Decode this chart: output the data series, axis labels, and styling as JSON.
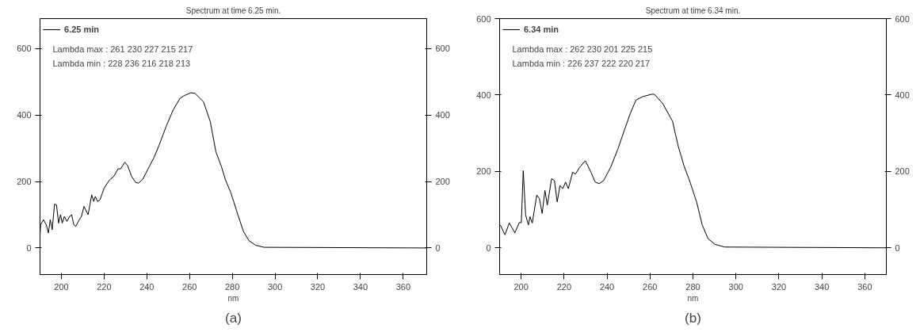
{
  "chart_data": [
    {
      "type": "line",
      "title": "Spectrum at time 6.25 min.",
      "xlabel": "nm",
      "legend": "top left",
      "xlim": [
        190,
        371
      ],
      "ylim": [
        -80,
        690
      ],
      "xticks": [
        200,
        220,
        240,
        260,
        280,
        300,
        320,
        340,
        360
      ],
      "yticks": [
        0,
        200,
        400,
        600
      ],
      "y2lim": [
        -80,
        690
      ],
      "y2ticks": [
        0,
        200,
        400,
        600
      ],
      "annotations": [
        "Lambda max :   261   230   227   215   217",
        "Lambda min  :   228   236   216   218   213",
        "(a)"
      ],
      "series": [
        {
          "name": "6.25 min",
          "color": "#000000",
          "x": [
            190,
            190.3,
            191.6,
            192.9,
            193.9,
            194.8,
            195.7,
            196.8,
            197.7,
            198.7,
            199.6,
            200.4,
            201.4,
            202.6,
            203.9,
            204.8,
            205.8,
            206.7,
            208.4,
            209.4,
            210.6,
            212.5,
            214.2,
            215.1,
            215.9,
            216.9,
            218.1,
            220,
            222.6,
            224.5,
            226.5,
            227.7,
            229.7,
            231,
            232.9,
            234.8,
            236.1,
            238.1,
            240.6,
            243.2,
            245.8,
            249,
            252.3,
            255.5,
            257.4,
            260.6,
            262.6,
            266.5,
            269.7,
            272.3,
            274.9,
            276.8,
            279.4,
            282.6,
            285.2,
            287.8,
            291,
            294.9,
            371
          ],
          "values": [
            40,
            70,
            85,
            70,
            45,
            85,
            55,
            132,
            130,
            75,
            100,
            75,
            95,
            80,
            95,
            100,
            70,
            65,
            85,
            95,
            125,
            100,
            160,
            140,
            155,
            140,
            145,
            180,
            205,
            215,
            238,
            238,
            258,
            248,
            215,
            197,
            195,
            207,
            238,
            270,
            310,
            365,
            415,
            450,
            458,
            467,
            465,
            440,
            380,
            290,
            245,
            205,
            165,
            100,
            50,
            22,
            8,
            2,
            0
          ]
        }
      ]
    },
    {
      "type": "line",
      "title": "Spectrum at time 6.34 min.",
      "xlabel": "nm",
      "legend": "top left",
      "xlim": [
        190,
        370
      ],
      "ylim": [
        -70,
        600
      ],
      "xticks": [
        200,
        220,
        240,
        260,
        280,
        300,
        320,
        340,
        360
      ],
      "yticks": [
        0,
        200,
        400,
        600
      ],
      "y2lim": [
        -70,
        600
      ],
      "y2ticks": [
        0,
        200,
        400,
        600
      ],
      "annotations": [
        "Lambda max :   262   230   201   225   215",
        "Lambda min  :   226   237   222   220   217",
        "(b)"
      ],
      "series": [
        {
          "name": "6.34 min",
          "color": "#000000",
          "x": [
            190.3,
            192.5,
            194.5,
            197.1,
            199.1,
            200.1,
            201,
            202.1,
            203.4,
            204.1,
            205.2,
            207.3,
            208.5,
            209.8,
            211.1,
            212.2,
            214.2,
            215.5,
            216.8,
            218.1,
            219.4,
            220.7,
            222,
            224,
            225.3,
            227.3,
            229.9,
            232.5,
            234.5,
            236.4,
            238.4,
            241.7,
            245,
            248.2,
            250.9,
            253.5,
            256.7,
            260.7,
            262,
            265.9,
            270.5,
            273.1,
            275.8,
            278.4,
            281.7,
            284.3,
            287,
            290.3,
            294.8,
            370
          ],
          "values": [
            60,
            34,
            65,
            39,
            66,
            66,
            202,
            86,
            60,
            82,
            65,
            138,
            129,
            90,
            150,
            112,
            181,
            176,
            120,
            163,
            155,
            172,
            155,
            198,
            193,
            211,
            228,
            198,
            172,
            168,
            176,
            211,
            258,
            310,
            353,
            387,
            396,
            402,
            402,
            378,
            331,
            267,
            215,
            176,
            120,
            60,
            24,
            9,
            2,
            0
          ]
        }
      ]
    }
  ]
}
